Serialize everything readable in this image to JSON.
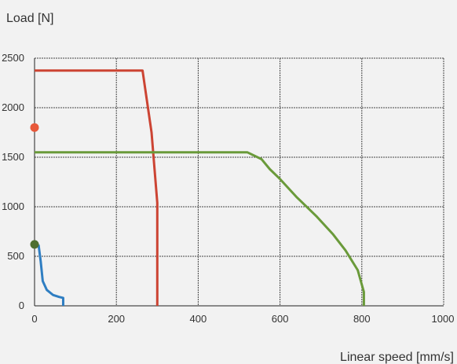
{
  "chart_data": {
    "type": "line",
    "xlabel": "Linear speed [mm/s]",
    "ylabel": "Load [N]",
    "xlim": [
      0,
      1000
    ],
    "ylim": [
      0,
      2500
    ],
    "x_ticks": [
      0,
      200,
      400,
      600,
      800,
      1000
    ],
    "y_ticks": [
      0,
      500,
      1000,
      1500,
      2000,
      2500
    ],
    "x_tick_labels": [
      "0",
      "200",
      "400",
      "600",
      "800",
      "1000"
    ],
    "y_tick_labels": [
      "0",
      "500",
      "1000",
      "1500",
      "2000",
      "2500"
    ],
    "grid": true,
    "series": [
      {
        "color": "#cc4433",
        "points": [
          [
            0,
            2375
          ],
          [
            264,
            2375
          ],
          [
            286,
            1750
          ],
          [
            300,
            1040
          ],
          [
            300,
            0
          ]
        ]
      },
      {
        "color": "#6a9a3a",
        "points": [
          [
            0,
            1550
          ],
          [
            520,
            1550
          ],
          [
            555,
            1480
          ],
          [
            575,
            1380
          ],
          [
            600,
            1280
          ],
          [
            640,
            1100
          ],
          [
            690,
            900
          ],
          [
            730,
            720
          ],
          [
            760,
            560
          ],
          [
            790,
            360
          ],
          [
            805,
            140
          ],
          [
            805,
            0
          ]
        ]
      },
      {
        "color": "#2f7ec2",
        "points": [
          [
            0,
            620
          ],
          [
            10,
            610
          ],
          [
            15,
            450
          ],
          [
            20,
            250
          ],
          [
            30,
            160
          ],
          [
            45,
            110
          ],
          [
            60,
            90
          ],
          [
            70,
            80
          ],
          [
            70,
            0
          ]
        ]
      }
    ],
    "markers": [
      {
        "x": 0,
        "y": 1800,
        "color": "#e8583a"
      },
      {
        "x": 0,
        "y": 620,
        "color": "#4f6f2f"
      }
    ]
  }
}
